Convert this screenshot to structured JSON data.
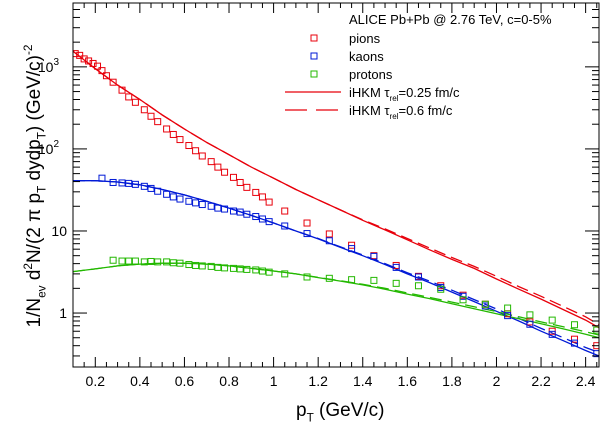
{
  "chart_data": {
    "type": "scatter",
    "title": "ALICE Pb+Pb @ 2.76 TeV, c=0-5%",
    "xlabel": {
      "base": "p",
      "sub": "T",
      "rest": " (GeV/c)"
    },
    "ylabel": {
      "parts": [
        {
          "t": "1/N"
        },
        {
          "t": "ev",
          "sub": true
        },
        {
          "t": " d"
        },
        {
          "t": "2",
          "sup": true
        },
        {
          "t": "N/(2 π p"
        },
        {
          "t": "T",
          "sub": true
        },
        {
          "t": " dydp"
        },
        {
          "t": "T",
          "sub": true
        },
        {
          "t": ") (GeV/c)"
        },
        {
          "t": "-2",
          "sup": true
        }
      ]
    },
    "xlim": [
      0.1,
      2.46
    ],
    "ylim": [
      0.22,
      6000
    ],
    "yscale": "log",
    "x_ticks": [
      "0.2",
      "0.4",
      "0.6",
      "0.8",
      "1",
      "1.2",
      "1.4",
      "1.6",
      "1.8",
      "2",
      "2.2",
      "2.4"
    ],
    "y_ticks": [
      {
        "base": "1",
        "exp": "",
        "value": 1
      },
      {
        "base": "10",
        "exp": "",
        "value": 10
      },
      {
        "base": "10",
        "exp": "2",
        "value": 100
      },
      {
        "base": "10",
        "exp": "3",
        "value": 1000
      }
    ],
    "legend": {
      "placement": "top-right",
      "entries": [
        {
          "label": "pions",
          "kind": "marker",
          "color": "#e8000b"
        },
        {
          "label": "kaons",
          "kind": "marker",
          "color": "#0019d6"
        },
        {
          "label": "protons",
          "kind": "marker",
          "color": "#23b800"
        },
        {
          "label_parts": [
            {
              "t": "iHKM τ"
            },
            {
              "t": "rel",
              "sub": true
            },
            {
              "t": "=0.25 fm/c"
            }
          ],
          "kind": "solid",
          "color": "#e8000b"
        },
        {
          "label_parts": [
            {
              "t": "iHKM τ"
            },
            {
              "t": "rel",
              "sub": true
            },
            {
              "t": "=0.6 fm/c"
            }
          ],
          "kind": "dashed",
          "color": "#e8000b"
        }
      ]
    },
    "points": [
      {
        "name": "pions",
        "color": "#e8000b",
        "x": [
          0.11,
          0.13,
          0.15,
          0.17,
          0.19,
          0.21,
          0.23,
          0.25,
          0.28,
          0.32,
          0.35,
          0.38,
          0.42,
          0.45,
          0.48,
          0.52,
          0.55,
          0.58,
          0.62,
          0.65,
          0.68,
          0.72,
          0.75,
          0.78,
          0.82,
          0.85,
          0.88,
          0.92,
          0.95,
          0.98,
          1.05,
          1.15,
          1.25,
          1.35,
          1.45,
          1.55,
          1.65,
          1.75,
          1.85,
          1.95,
          2.05,
          2.15,
          2.25,
          2.35,
          2.45
        ],
        "y": [
          1450,
          1380,
          1250,
          1180,
          1100,
          1020,
          900,
          780,
          650,
          520,
          430,
          370,
          300,
          250,
          215,
          175,
          150,
          130,
          110,
          95,
          82,
          70,
          60,
          52,
          45,
          39,
          34,
          29.5,
          26,
          22.5,
          17.5,
          12.5,
          9.2,
          6.7,
          5.0,
          3.8,
          2.8,
          2.15,
          1.65,
          1.28,
          0.98,
          0.78,
          0.6,
          0.48,
          0.4
        ]
      },
      {
        "name": "kaons",
        "color": "#0019d6",
        "x": [
          0.23,
          0.28,
          0.32,
          0.35,
          0.38,
          0.42,
          0.45,
          0.48,
          0.52,
          0.55,
          0.58,
          0.62,
          0.65,
          0.68,
          0.72,
          0.75,
          0.78,
          0.82,
          0.85,
          0.88,
          0.92,
          0.95,
          0.98,
          1.05,
          1.15,
          1.25,
          1.35,
          1.45,
          1.55,
          1.65,
          1.75,
          1.85,
          1.95,
          2.05,
          2.15,
          2.25,
          2.35,
          2.45
        ],
        "y": [
          44,
          39,
          38.5,
          38,
          37,
          35,
          33,
          30.5,
          28,
          26,
          24.5,
          23,
          22,
          21,
          20,
          19,
          18.5,
          17.5,
          17,
          16,
          15,
          14,
          13,
          11.5,
          9.3,
          7.6,
          6.1,
          4.9,
          3.6,
          2.75,
          2.05,
          1.6,
          1.22,
          0.93,
          0.73,
          0.55,
          0.43,
          0.32
        ]
      },
      {
        "name": "protons",
        "color": "#23b800",
        "x": [
          0.28,
          0.32,
          0.35,
          0.38,
          0.42,
          0.45,
          0.48,
          0.52,
          0.55,
          0.58,
          0.62,
          0.65,
          0.68,
          0.72,
          0.75,
          0.78,
          0.82,
          0.85,
          0.88,
          0.92,
          0.95,
          0.98,
          1.05,
          1.15,
          1.25,
          1.35,
          1.45,
          1.55,
          1.65,
          1.75,
          1.85,
          1.95,
          2.05,
          2.15,
          2.25,
          2.35,
          2.45
        ],
        "y": [
          4.4,
          4.3,
          4.3,
          4.3,
          4.2,
          4.25,
          4.2,
          4.2,
          4.1,
          4.05,
          3.9,
          3.8,
          3.75,
          3.7,
          3.6,
          3.55,
          3.5,
          3.45,
          3.4,
          3.35,
          3.25,
          3.15,
          3.0,
          2.75,
          2.65,
          2.55,
          2.5,
          2.3,
          2.15,
          1.95,
          1.45,
          1.28,
          1.15,
          0.95,
          0.82,
          0.72,
          0.62
        ]
      }
    ],
    "curves": [
      {
        "name": "pions-0.25",
        "color": "#e8000b",
        "style": "solid",
        "x": [
          0.1,
          0.2,
          0.3,
          0.4,
          0.5,
          0.6,
          0.7,
          0.8,
          0.9,
          1.0,
          1.1,
          1.2,
          1.3,
          1.4,
          1.5,
          1.6,
          1.7,
          1.8,
          1.9,
          2.0,
          2.1,
          2.2,
          2.3,
          2.4,
          2.46
        ],
        "y": [
          1550,
          950,
          600,
          400,
          260,
          175,
          120,
          85,
          60,
          44,
          32,
          24,
          18,
          13.5,
          10.3,
          7.8,
          5.9,
          4.5,
          3.5,
          2.6,
          1.95,
          1.48,
          1.1,
          0.82,
          0.66
        ]
      },
      {
        "name": "pions-0.6",
        "color": "#e8000b",
        "style": "dashed",
        "x": [
          0.1,
          0.2,
          0.3,
          0.4,
          0.5,
          0.6,
          0.7,
          0.8,
          0.9,
          1.0,
          1.1,
          1.2,
          1.3,
          1.4,
          1.5,
          1.6,
          1.7,
          1.8,
          1.9,
          2.0,
          2.1,
          2.2,
          2.3,
          2.4,
          2.46
        ],
        "y": [
          1550,
          950,
          600,
          400,
          260,
          175,
          120,
          85,
          60,
          44,
          32,
          24,
          18,
          13.7,
          10.6,
          8.1,
          6.2,
          4.75,
          3.7,
          2.8,
          2.1,
          1.6,
          1.2,
          0.9,
          0.72
        ]
      },
      {
        "name": "kaons-0.25",
        "color": "#0019d6",
        "style": "solid",
        "x": [
          0.1,
          0.2,
          0.3,
          0.4,
          0.5,
          0.6,
          0.7,
          0.8,
          0.9,
          1.0,
          1.1,
          1.2,
          1.3,
          1.4,
          1.5,
          1.6,
          1.7,
          1.8,
          1.9,
          2.0,
          2.1,
          2.2,
          2.3,
          2.4,
          2.46
        ],
        "y": [
          41,
          41,
          39.5,
          36.5,
          32,
          27.5,
          23,
          19,
          15.5,
          12.5,
          10,
          8,
          6.3,
          5,
          3.9,
          3.0,
          2.35,
          1.8,
          1.38,
          1.05,
          0.8,
          0.6,
          0.46,
          0.35,
          0.3
        ]
      },
      {
        "name": "kaons-0.6",
        "color": "#0019d6",
        "style": "dashed",
        "x": [
          0.1,
          0.2,
          0.3,
          0.4,
          0.5,
          0.6,
          0.7,
          0.8,
          0.9,
          1.0,
          1.1,
          1.2,
          1.3,
          1.4,
          1.5,
          1.6,
          1.7,
          1.8,
          1.9,
          2.0,
          2.1,
          2.2,
          2.3,
          2.4,
          2.46
        ],
        "y": [
          41,
          41,
          39.5,
          36.5,
          32,
          27.5,
          23,
          19,
          15.5,
          12.5,
          10,
          8.1,
          6.4,
          5.1,
          4.0,
          3.1,
          2.45,
          1.9,
          1.46,
          1.12,
          0.86,
          0.65,
          0.5,
          0.38,
          0.33
        ]
      },
      {
        "name": "protons-0.25",
        "color": "#23b800",
        "style": "solid",
        "x": [
          0.1,
          0.2,
          0.3,
          0.4,
          0.5,
          0.6,
          0.7,
          0.8,
          0.9,
          1.0,
          1.1,
          1.2,
          1.3,
          1.4,
          1.5,
          1.6,
          1.7,
          1.8,
          1.9,
          2.0,
          2.1,
          2.2,
          2.3,
          2.4,
          2.46
        ],
        "y": [
          3.2,
          3.45,
          3.75,
          3.95,
          4.05,
          4.05,
          3.95,
          3.75,
          3.5,
          3.25,
          3.0,
          2.7,
          2.45,
          2.2,
          1.95,
          1.7,
          1.5,
          1.3,
          1.13,
          0.98,
          0.85,
          0.74,
          0.64,
          0.55,
          0.5
        ]
      },
      {
        "name": "protons-0.6",
        "color": "#23b800",
        "style": "dashed",
        "x": [
          0.1,
          0.2,
          0.3,
          0.4,
          0.5,
          0.6,
          0.7,
          0.8,
          0.9,
          1.0,
          1.1,
          1.2,
          1.3,
          1.4,
          1.5,
          1.6,
          1.7,
          1.8,
          1.9,
          2.0,
          2.1,
          2.2,
          2.3,
          2.4,
          2.46
        ],
        "y": [
          3.2,
          3.45,
          3.75,
          3.95,
          4.05,
          4.05,
          3.95,
          3.75,
          3.5,
          3.25,
          3.0,
          2.72,
          2.48,
          2.24,
          2.0,
          1.76,
          1.55,
          1.36,
          1.19,
          1.04,
          0.9,
          0.78,
          0.68,
          0.59,
          0.54
        ]
      }
    ]
  }
}
